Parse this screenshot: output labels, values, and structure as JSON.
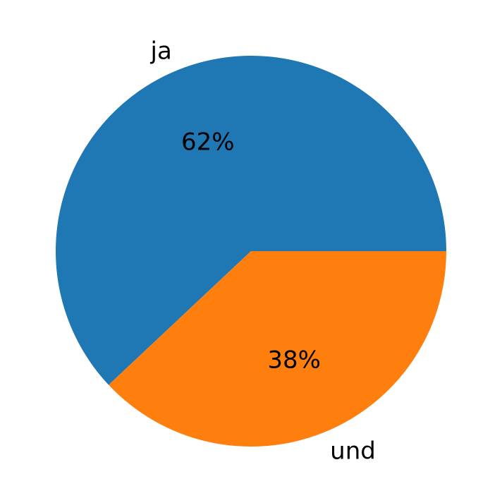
{
  "chart_data": {
    "type": "pie",
    "start_angle_deg": 0,
    "direction": "counterclockwise",
    "slices": [
      {
        "label": "ja",
        "value": 62,
        "pct_label": "62%",
        "color": "#1f77b4"
      },
      {
        "label": "und",
        "value": 38,
        "pct_label": "38%",
        "color": "#ff7f0e"
      }
    ]
  }
}
